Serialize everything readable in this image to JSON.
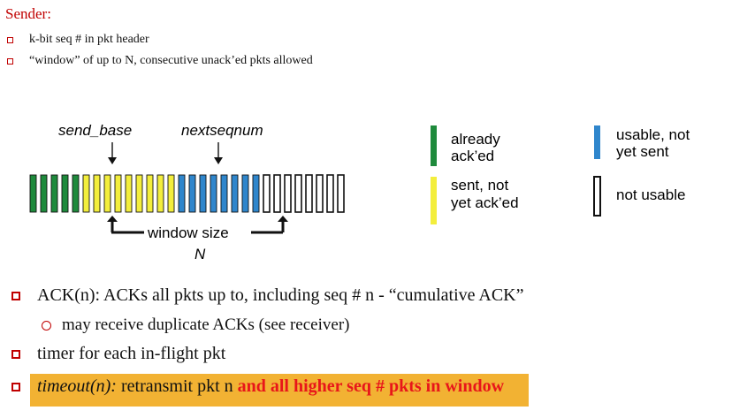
{
  "sender": {
    "title": "Sender:",
    "bullets": [
      "k-bit seq # in pkt header",
      "“window” of up to N, consecutive unack’ed pkts allowed"
    ]
  },
  "diagram": {
    "send_base_label": "send_base",
    "nextseqnum_label": "nextseqnum",
    "window_size_label": "window size",
    "window_n_label": "N",
    "legend": {
      "acked": [
        "already",
        "ack’ed"
      ],
      "sent": [
        "sent, not",
        "yet ack’ed"
      ],
      "usable": [
        "usable, not",
        "yet sent"
      ],
      "not_usable": "not usable"
    },
    "packet_counts": {
      "acked": 5,
      "sent": 9,
      "usable": 8,
      "not_usable": 8
    },
    "colors": {
      "acked": "#1e8a3c",
      "sent": "#f3ee3c",
      "usable": "#2f86cc",
      "not_usable": "#ffffff",
      "accent": "#c00000",
      "highlight": "#f2b233",
      "emphasis": "#e8161a"
    }
  },
  "points": {
    "ack": "ACK(n): ACKs all pkts up to, including seq # n - “cumulative ACK”",
    "dup": "may receive duplicate ACKs (see receiver)",
    "timer": "timer for each in-flight pkt",
    "timeout_italic": "timeout(n):",
    "timeout_plain": " retransmit pkt n",
    "timeout_red": "and all higher seq # pkts in window"
  }
}
